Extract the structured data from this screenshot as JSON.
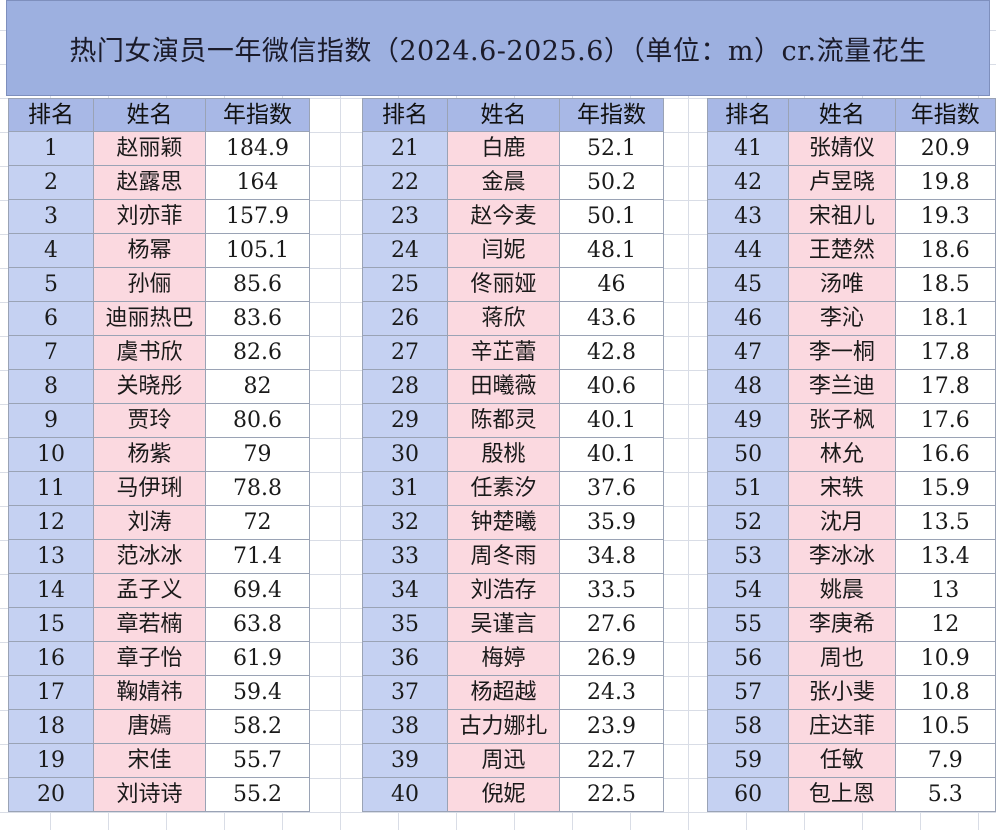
{
  "title": "热门女演员一年微信指数（2024.6-2025.6）（单位：m）cr.流量花生",
  "headers": {
    "rank": "排名",
    "name": "姓名",
    "value": "年指数"
  },
  "colors": {
    "title_bg": "#9db0e0",
    "header_bg": "#a8b8e6",
    "rank_bg": "#c5d1f2",
    "name_bg": "#fbd9e0"
  },
  "tables": [
    {
      "rows": [
        {
          "rank": "1",
          "name": "赵丽颖",
          "value": "184.9"
        },
        {
          "rank": "2",
          "name": "赵露思",
          "value": "164"
        },
        {
          "rank": "3",
          "name": "刘亦菲",
          "value": "157.9"
        },
        {
          "rank": "4",
          "name": "杨幂",
          "value": "105.1"
        },
        {
          "rank": "5",
          "name": "孙俪",
          "value": "85.6"
        },
        {
          "rank": "6",
          "name": "迪丽热巴",
          "value": "83.6"
        },
        {
          "rank": "7",
          "name": "虞书欣",
          "value": "82.6"
        },
        {
          "rank": "8",
          "name": "关晓彤",
          "value": "82"
        },
        {
          "rank": "9",
          "name": "贾玲",
          "value": "80.6"
        },
        {
          "rank": "10",
          "name": "杨紫",
          "value": "79"
        },
        {
          "rank": "11",
          "name": "马伊琍",
          "value": "78.8"
        },
        {
          "rank": "12",
          "name": "刘涛",
          "value": "72"
        },
        {
          "rank": "13",
          "name": "范冰冰",
          "value": "71.4"
        },
        {
          "rank": "14",
          "name": "孟子义",
          "value": "69.4"
        },
        {
          "rank": "15",
          "name": "章若楠",
          "value": "63.8"
        },
        {
          "rank": "16",
          "name": "章子怡",
          "value": "61.9"
        },
        {
          "rank": "17",
          "name": "鞠婧祎",
          "value": "59.4"
        },
        {
          "rank": "18",
          "name": "唐嫣",
          "value": "58.2"
        },
        {
          "rank": "19",
          "name": "宋佳",
          "value": "55.7"
        },
        {
          "rank": "20",
          "name": "刘诗诗",
          "value": "55.2"
        }
      ]
    },
    {
      "rows": [
        {
          "rank": "21",
          "name": "白鹿",
          "value": "52.1"
        },
        {
          "rank": "22",
          "name": "金晨",
          "value": "50.2"
        },
        {
          "rank": "23",
          "name": "赵今麦",
          "value": "50.1"
        },
        {
          "rank": "24",
          "name": "闫妮",
          "value": "48.1"
        },
        {
          "rank": "25",
          "name": "佟丽娅",
          "value": "46"
        },
        {
          "rank": "26",
          "name": "蒋欣",
          "value": "43.6"
        },
        {
          "rank": "27",
          "name": "辛芷蕾",
          "value": "42.8"
        },
        {
          "rank": "28",
          "name": "田曦薇",
          "value": "40.6"
        },
        {
          "rank": "29",
          "name": "陈都灵",
          "value": "40.1"
        },
        {
          "rank": "30",
          "name": "殷桃",
          "value": "40.1"
        },
        {
          "rank": "31",
          "name": "任素汐",
          "value": "37.6"
        },
        {
          "rank": "32",
          "name": "钟楚曦",
          "value": "35.9"
        },
        {
          "rank": "33",
          "name": "周冬雨",
          "value": "34.8"
        },
        {
          "rank": "34",
          "name": "刘浩存",
          "value": "33.5"
        },
        {
          "rank": "35",
          "name": "吴谨言",
          "value": "27.6"
        },
        {
          "rank": "36",
          "name": "梅婷",
          "value": "26.9"
        },
        {
          "rank": "37",
          "name": "杨超越",
          "value": "24.3"
        },
        {
          "rank": "38",
          "name": "古力娜扎",
          "value": "23.9"
        },
        {
          "rank": "39",
          "name": "周迅",
          "value": "22.7"
        },
        {
          "rank": "40",
          "name": "倪妮",
          "value": "22.5"
        }
      ]
    },
    {
      "rows": [
        {
          "rank": "41",
          "name": "张婧仪",
          "value": "20.9"
        },
        {
          "rank": "42",
          "name": "卢昱晓",
          "value": "19.8"
        },
        {
          "rank": "43",
          "name": "宋祖儿",
          "value": "19.3"
        },
        {
          "rank": "44",
          "name": "王楚然",
          "value": "18.6"
        },
        {
          "rank": "45",
          "name": "汤唯",
          "value": "18.5"
        },
        {
          "rank": "46",
          "name": "李沁",
          "value": "18.1"
        },
        {
          "rank": "47",
          "name": "李一桐",
          "value": "17.8"
        },
        {
          "rank": "48",
          "name": "李兰迪",
          "value": "17.8"
        },
        {
          "rank": "49",
          "name": "张子枫",
          "value": "17.6"
        },
        {
          "rank": "50",
          "name": "林允",
          "value": "16.6"
        },
        {
          "rank": "51",
          "name": "宋轶",
          "value": "15.9"
        },
        {
          "rank": "52",
          "name": "沈月",
          "value": "13.5"
        },
        {
          "rank": "53",
          "name": "李冰冰",
          "value": "13.4"
        },
        {
          "rank": "54",
          "name": "姚晨",
          "value": "13"
        },
        {
          "rank": "55",
          "name": "李庚希",
          "value": "12"
        },
        {
          "rank": "56",
          "name": "周也",
          "value": "10.9"
        },
        {
          "rank": "57",
          "name": "张小斐",
          "value": "10.8"
        },
        {
          "rank": "58",
          "name": "庄达菲",
          "value": "10.5"
        },
        {
          "rank": "59",
          "name": "任敏",
          "value": "7.9"
        },
        {
          "rank": "60",
          "name": "包上恩",
          "value": "5.3"
        }
      ]
    }
  ]
}
